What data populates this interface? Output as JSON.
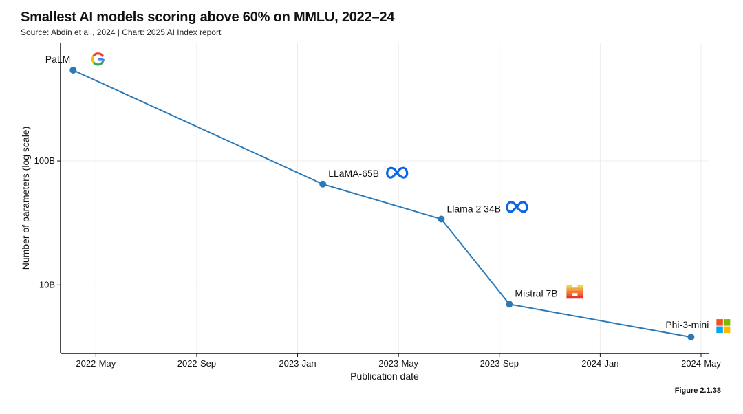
{
  "header": {
    "title": "Smallest AI models scoring above 60% on MMLU, 2022–24",
    "subtitle": "Source: Abdin et al., 2024 | Chart: 2025 AI Index report"
  },
  "figure_label": "Figure 2.1.38",
  "colors": {
    "line": "#2a7ab9",
    "point": "#2a7ab9",
    "grid": "#ececec",
    "axis": "#111111"
  },
  "chart_data": {
    "type": "line",
    "title": "Smallest AI models scoring above 60% on MMLU, 2022–24",
    "xlabel": "Publication date",
    "ylabel": "Number of parameters (log scale)",
    "yscale": "log",
    "ylim": [
      2.8,
      900
    ],
    "xlim_months": [
      3.6,
      29.3
    ],
    "x_ticks": [
      {
        "label": "2022-May",
        "month": 5
      },
      {
        "label": "2022-Sep",
        "month": 9
      },
      {
        "label": "2023-Jan",
        "month": 13
      },
      {
        "label": "2023-May",
        "month": 17
      },
      {
        "label": "2023-Sep",
        "month": 21
      },
      {
        "label": "2024-Jan",
        "month": 25
      },
      {
        "label": "2024-May",
        "month": 29
      }
    ],
    "y_ticks": [
      {
        "label": "10B",
        "value": 10
      },
      {
        "label": "100B",
        "value": 100
      }
    ],
    "points": [
      {
        "model": "PaLM",
        "date": "2022-04",
        "month": 4.1,
        "params_b": 540,
        "org_icon": "google-icon"
      },
      {
        "model": "LLaMA-65B",
        "date": "2023-02",
        "month": 14.0,
        "params_b": 65,
        "org_icon": "meta-icon"
      },
      {
        "model": "Llama 2 34B",
        "date": "2023-07",
        "month": 18.7,
        "params_b": 34,
        "org_icon": "meta-icon"
      },
      {
        "model": "Mistral 7B",
        "date": "2023-09",
        "month": 21.4,
        "params_b": 7.0,
        "org_icon": "mistral-icon"
      },
      {
        "model": "Phi-3-mini",
        "date": "2024-04",
        "month": 28.6,
        "params_b": 3.8,
        "org_icon": "microsoft-icon"
      }
    ],
    "grid": true,
    "legend": "none"
  }
}
